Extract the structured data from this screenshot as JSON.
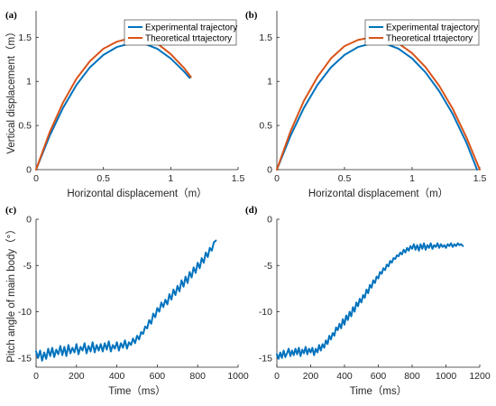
{
  "chart_data": [
    {
      "panel": "(a)",
      "type": "line",
      "xlabel": "Horizontal displacement（m）",
      "ylabel": "Vertical displacement（m）",
      "xlim": [
        0,
        1.5
      ],
      "ylim": [
        0,
        1.8
      ],
      "xticks": [
        0,
        0.5,
        1,
        1.5
      ],
      "xtick_labels": [
        "0",
        "0.5",
        "1",
        "1.5"
      ],
      "yticks": [
        0,
        0.5,
        1,
        1.5
      ],
      "ytick_labels": [
        "0",
        "0.5",
        "1",
        "1.5"
      ],
      "legend": "top-right",
      "series": [
        {
          "name": "Experimental trajectory",
          "color": "#0072BD",
          "x": [
            0,
            0.1,
            0.2,
            0.3,
            0.4,
            0.5,
            0.6,
            0.7,
            0.75,
            0.8,
            0.9,
            1.0,
            1.1,
            1.14
          ],
          "y": [
            0,
            0.38,
            0.7,
            0.96,
            1.16,
            1.3,
            1.39,
            1.43,
            1.44,
            1.43,
            1.37,
            1.26,
            1.11,
            1.04
          ]
        },
        {
          "name": "Theoretical trtajectory",
          "color": "#D95319",
          "x": [
            0,
            0.1,
            0.2,
            0.3,
            0.4,
            0.5,
            0.6,
            0.7,
            0.76,
            0.8,
            0.9,
            1.0,
            1.1,
            1.15
          ],
          "y": [
            0,
            0.42,
            0.76,
            1.03,
            1.23,
            1.37,
            1.45,
            1.49,
            1.5,
            1.49,
            1.43,
            1.31,
            1.15,
            1.05
          ]
        }
      ]
    },
    {
      "panel": "(b)",
      "type": "line",
      "xlabel": "Horizontal displacement（m）",
      "ylabel": "",
      "xlim": [
        0,
        1.5
      ],
      "ylim": [
        0,
        1.8
      ],
      "xticks": [
        0,
        0.5,
        1,
        1.5
      ],
      "xtick_labels": [
        "0",
        "0.5",
        "1",
        "1.5"
      ],
      "yticks": [
        0,
        0.5,
        1,
        1.5
      ],
      "ytick_labels": [
        "0",
        "0.5",
        "1",
        "1.5"
      ],
      "legend": "top-right",
      "series": [
        {
          "name": "Experimental trajectory",
          "color": "#0072BD",
          "x": [
            0,
            0.1,
            0.2,
            0.3,
            0.4,
            0.5,
            0.6,
            0.7,
            0.75,
            0.8,
            0.9,
            1.0,
            1.1,
            1.2,
            1.3,
            1.4,
            1.48
          ],
          "y": [
            0,
            0.38,
            0.7,
            0.96,
            1.16,
            1.3,
            1.39,
            1.43,
            1.44,
            1.43,
            1.37,
            1.26,
            1.1,
            0.89,
            0.63,
            0.31,
            0.0
          ]
        },
        {
          "name": "Theoretical trtajectory",
          "color": "#D95319",
          "x": [
            0,
            0.1,
            0.2,
            0.3,
            0.4,
            0.5,
            0.6,
            0.7,
            0.75,
            0.8,
            0.9,
            1.0,
            1.1,
            1.2,
            1.3,
            1.4,
            1.5
          ],
          "y": [
            0,
            0.43,
            0.78,
            1.05,
            1.26,
            1.4,
            1.47,
            1.5,
            1.5,
            1.49,
            1.43,
            1.32,
            1.16,
            0.95,
            0.69,
            0.37,
            0.0
          ]
        }
      ]
    },
    {
      "panel": "(c)",
      "type": "line",
      "xlabel": "Time（ms）",
      "ylabel": "Pitch angle of main body（°）",
      "xlim": [
        0,
        1000
      ],
      "ylim": [
        -16,
        0
      ],
      "xticks": [
        0,
        200,
        400,
        600,
        800,
        1000
      ],
      "xtick_labels": [
        "0",
        "200",
        "400",
        "600",
        "800",
        "1000"
      ],
      "yticks": [
        -15,
        -10,
        -5,
        0
      ],
      "ytick_labels": [
        "-15",
        "-10",
        "-5",
        "0"
      ],
      "series": [
        {
          "name": "",
          "color": "#0072BD",
          "x": [
            0,
            10,
            20,
            30,
            40,
            50,
            60,
            70,
            80,
            90,
            100,
            110,
            120,
            130,
            140,
            150,
            160,
            170,
            180,
            190,
            200,
            210,
            220,
            230,
            240,
            250,
            260,
            270,
            280,
            290,
            300,
            310,
            320,
            330,
            340,
            350,
            360,
            370,
            380,
            390,
            400,
            410,
            420,
            430,
            440,
            450,
            460,
            470,
            480,
            490,
            500,
            510,
            520,
            530,
            540,
            550,
            560,
            570,
            580,
            590,
            600,
            610,
            620,
            630,
            640,
            650,
            660,
            670,
            680,
            690,
            700,
            710,
            720,
            730,
            740,
            750,
            760,
            770,
            780,
            790,
            800,
            810,
            820,
            830,
            840,
            850,
            860,
            870,
            880,
            890
          ],
          "y": [
            -14.3,
            -15.0,
            -14.2,
            -15.3,
            -14.4,
            -15.1,
            -14.0,
            -14.8,
            -13.9,
            -14.9,
            -14.1,
            -14.6,
            -13.7,
            -14.7,
            -13.8,
            -14.8,
            -13.6,
            -14.5,
            -13.9,
            -14.4,
            -13.5,
            -14.6,
            -13.8,
            -14.2,
            -13.4,
            -14.5,
            -13.7,
            -14.3,
            -13.3,
            -14.4,
            -13.6,
            -14.2,
            -13.5,
            -14.3,
            -13.4,
            -14.1,
            -13.2,
            -14.3,
            -13.6,
            -14.0,
            -13.3,
            -14.2,
            -13.4,
            -13.9,
            -13.1,
            -14.0,
            -13.3,
            -13.6,
            -12.9,
            -13.4,
            -12.6,
            -13.0,
            -12.2,
            -12.4,
            -11.6,
            -11.8,
            -10.9,
            -11.3,
            -10.2,
            -10.6,
            -9.6,
            -10.0,
            -9.0,
            -9.5,
            -8.7,
            -9.2,
            -8.1,
            -8.7,
            -7.6,
            -8.2,
            -7.2,
            -7.8,
            -6.6,
            -7.3,
            -6.2,
            -6.9,
            -5.7,
            -6.3,
            -5.2,
            -5.8,
            -4.7,
            -5.3,
            -4.2,
            -4.7,
            -3.6,
            -4.1,
            -3.1,
            -3.4,
            -2.5,
            -2.3
          ]
        }
      ]
    },
    {
      "panel": "(d)",
      "type": "line",
      "xlabel": "Time（ms）",
      "ylabel": "",
      "xlim": [
        0,
        1200
      ],
      "ylim": [
        -16,
        0
      ],
      "xticks": [
        0,
        200,
        400,
        600,
        800,
        1000,
        1200
      ],
      "xtick_labels": [
        "0",
        "200",
        "400",
        "600",
        "800",
        "1000",
        "1200"
      ],
      "yticks": [
        -15,
        -10,
        -5,
        0
      ],
      "ytick_labels": [
        "-15",
        "-10",
        "-5",
        "0"
      ],
      "series": [
        {
          "name": "",
          "color": "#0072BD",
          "x": [
            0,
            10,
            20,
            30,
            40,
            50,
            60,
            70,
            80,
            90,
            100,
            110,
            120,
            130,
            140,
            150,
            160,
            170,
            180,
            190,
            200,
            210,
            220,
            230,
            240,
            250,
            260,
            270,
            280,
            290,
            300,
            310,
            320,
            330,
            340,
            350,
            360,
            370,
            380,
            390,
            400,
            410,
            420,
            430,
            440,
            450,
            460,
            470,
            480,
            490,
            500,
            510,
            520,
            530,
            540,
            550,
            560,
            570,
            580,
            590,
            600,
            610,
            620,
            630,
            640,
            650,
            660,
            670,
            680,
            690,
            700,
            710,
            720,
            730,
            740,
            750,
            760,
            770,
            780,
            790,
            800,
            810,
            820,
            830,
            840,
            850,
            860,
            870,
            880,
            890,
            900,
            910,
            920,
            930,
            940,
            950,
            960,
            970,
            980,
            990,
            1000,
            1010,
            1020,
            1030,
            1040,
            1050,
            1060,
            1070,
            1080,
            1090,
            1100
          ],
          "y": [
            -14.6,
            -15.1,
            -14.4,
            -15.0,
            -14.2,
            -14.9,
            -14.5,
            -14.0,
            -14.8,
            -14.2,
            -14.7,
            -14.0,
            -14.6,
            -13.9,
            -14.8,
            -14.1,
            -14.5,
            -13.8,
            -14.6,
            -14.0,
            -14.4,
            -13.9,
            -14.7,
            -14.0,
            -14.4,
            -13.6,
            -14.2,
            -13.5,
            -13.9,
            -13.1,
            -13.5,
            -12.6,
            -13.0,
            -12.3,
            -12.6,
            -11.7,
            -12.0,
            -11.3,
            -11.8,
            -10.8,
            -11.4,
            -10.4,
            -10.9,
            -10.0,
            -10.5,
            -9.5,
            -10.0,
            -9.0,
            -9.4,
            -8.6,
            -9.0,
            -8.2,
            -8.5,
            -7.6,
            -8.0,
            -7.1,
            -7.4,
            -6.6,
            -6.9,
            -6.2,
            -6.4,
            -5.7,
            -5.9,
            -5.3,
            -5.5,
            -4.9,
            -5.1,
            -4.5,
            -4.7,
            -4.2,
            -4.3,
            -3.9,
            -4.0,
            -3.6,
            -3.8,
            -3.3,
            -3.6,
            -3.1,
            -3.4,
            -2.9,
            -3.2,
            -2.7,
            -3.3,
            -2.8,
            -3.4,
            -2.7,
            -3.2,
            -2.6,
            -3.3,
            -2.8,
            -3.1,
            -2.6,
            -3.2,
            -2.8,
            -3.0,
            -2.6,
            -3.1,
            -2.7,
            -3.0,
            -2.8,
            -3.1,
            -2.7,
            -2.9,
            -2.6,
            -3.0,
            -2.7,
            -2.9,
            -2.6,
            -2.8,
            -2.7,
            -2.9
          ]
        }
      ]
    }
  ]
}
